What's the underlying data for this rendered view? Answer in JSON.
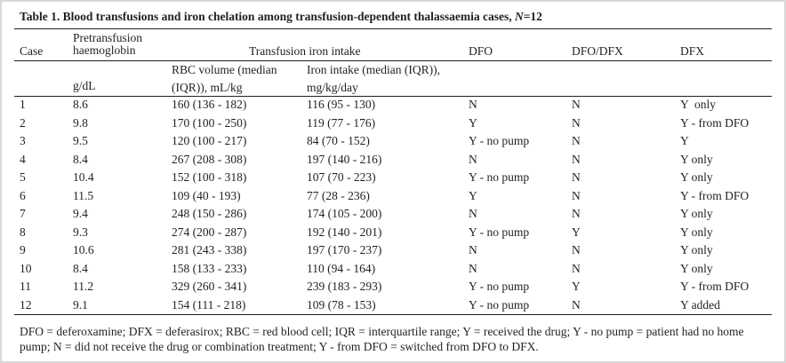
{
  "title": {
    "prefix": "Table 1. Blood transfusions and iron chelation among transfusion-dependent thalassaemia cases, ",
    "italic": "N",
    "suffix": "=12"
  },
  "table": {
    "header": [
      "Case",
      "Pretransfusion haemoglobin",
      "Transfusion iron intake",
      "DFO",
      "DFO/DFX",
      "DFX"
    ],
    "subheader": [
      "g/dL",
      "RBC volume (median (IQR)), mL/kg",
      "Iron intake (median (IQR)), mg/kg/day"
    ],
    "rows": [
      [
        "1",
        "8.6",
        "160 (136 - 182)",
        "116 (95 - 130)",
        "N",
        "N",
        "Y  only"
      ],
      [
        "2",
        "9.8",
        "170 (100 - 250)",
        "119 (77 - 176)",
        "Y",
        "N",
        "Y - from DFO"
      ],
      [
        "3",
        "9.5",
        "120 (100 - 217)",
        "84 (70 - 152)",
        "Y - no pump",
        "N",
        "Y"
      ],
      [
        "4",
        "8.4",
        "267 (208 - 308)",
        "197 (140 - 216)",
        "N",
        "N",
        "Y only"
      ],
      [
        "5",
        "10.4",
        "152 (100 - 318)",
        "107 (70 - 223)",
        "Y - no pump",
        "N",
        "Y only"
      ],
      [
        "6",
        "11.5",
        "109 (40 - 193)",
        "77 (28 - 236)",
        "Y",
        "N",
        "Y - from DFO"
      ],
      [
        "7",
        "9.4",
        "248 (150 - 286)",
        "174 (105 - 200)",
        "N",
        "N",
        "Y only"
      ],
      [
        "8",
        "9.3",
        "274 (200 - 287)",
        "192 (140 - 201)",
        "Y - no pump",
        "Y",
        "Y only"
      ],
      [
        "9",
        "10.6",
        "281 (243 - 338)",
        "197 (170 - 237)",
        "N",
        "N",
        "Y only"
      ],
      [
        "10",
        "8.4",
        "158 (133 - 233)",
        "110 (94 - 164)",
        "N",
        "N",
        "Y only"
      ],
      [
        "11",
        "11.2",
        "329 (260 - 341)",
        "239 (183 - 293)",
        "Y - no pump",
        "Y",
        "Y - from DFO"
      ],
      [
        "12",
        "9.1",
        "154 (111 - 218)",
        "109 (78 - 153)",
        "Y - no pump",
        "N",
        "Y added"
      ]
    ]
  },
  "footnote": "DFO = deferoxamine; DFX = deferasirox; RBC = red blood cell; IQR = interquartile range; Y = received the drug; Y - no pump = patient had no home pump; N = did not receive the drug or combination treatment; Y - from DFO = switched from DFO to DFX."
}
